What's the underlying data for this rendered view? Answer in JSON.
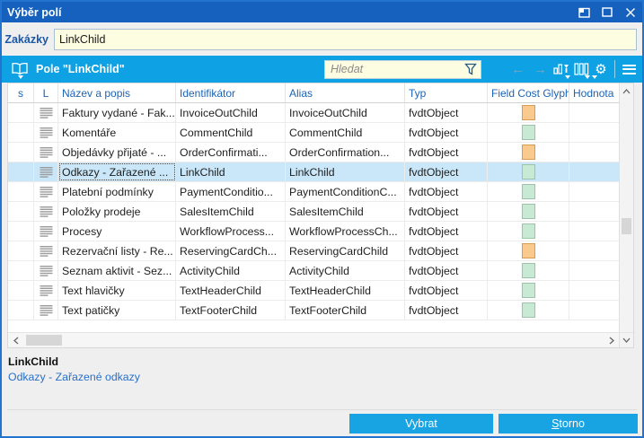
{
  "window": {
    "title": "Výběr polí"
  },
  "filter": {
    "label": "Zakázky",
    "value": "LinkChild"
  },
  "toolbar": {
    "title": "Pole \"LinkChild\"",
    "search_placeholder": "Hledat"
  },
  "table": {
    "columns": [
      "s",
      "L",
      "Název a popis",
      "Identifikátor",
      "Alias",
      "Typ",
      "Field Cost Glyph",
      "Hodnota"
    ],
    "selected_index": 3,
    "rows": [
      {
        "name": "Faktury vydané - Fak...",
        "id": "InvoiceOutChild",
        "alias": "InvoiceOutChild",
        "type": "fvdtObject",
        "glyph": "orange",
        "value": ""
      },
      {
        "name": "Komentáře",
        "id": "CommentChild",
        "alias": "CommentChild",
        "type": "fvdtObject",
        "glyph": "green",
        "value": ""
      },
      {
        "name": "Objedávky přijaté - ...",
        "id": "OrderConfirmati...",
        "alias": "OrderConfirmation...",
        "type": "fvdtObject",
        "glyph": "orange",
        "value": ""
      },
      {
        "name": "Odkazy - Zařazené ...",
        "id": "LinkChild",
        "alias": "LinkChild",
        "type": "fvdtObject",
        "glyph": "green",
        "value": ""
      },
      {
        "name": "Platební podmínky",
        "id": "PaymentConditio...",
        "alias": "PaymentConditionC...",
        "type": "fvdtObject",
        "glyph": "green",
        "value": ""
      },
      {
        "name": "Položky prodeje",
        "id": "SalesItemChild",
        "alias": "SalesItemChild",
        "type": "fvdtObject",
        "glyph": "green",
        "value": ""
      },
      {
        "name": "Procesy",
        "id": "WorkflowProcess...",
        "alias": "WorkflowProcessCh...",
        "type": "fvdtObject",
        "glyph": "green",
        "value": ""
      },
      {
        "name": "Rezervační listy - Re...",
        "id": "ReservingCardCh...",
        "alias": "ReservingCardChild",
        "type": "fvdtObject",
        "glyph": "orange",
        "value": ""
      },
      {
        "name": "Seznam aktivit - Sez...",
        "id": "ActivityChild",
        "alias": "ActivityChild",
        "type": "fvdtObject",
        "glyph": "green",
        "value": ""
      },
      {
        "name": "Text hlavičky",
        "id": "TextHeaderChild",
        "alias": "TextHeaderChild",
        "type": "fvdtObject",
        "glyph": "green",
        "value": ""
      },
      {
        "name": "Text patičky",
        "id": "TextFooterChild",
        "alias": "TextFooterChild",
        "type": "fvdtObject",
        "glyph": "green",
        "value": ""
      }
    ]
  },
  "status": {
    "field": "LinkChild",
    "description": "Odkazy - Zařazené odkazy"
  },
  "buttons": {
    "select": "Vybrat",
    "cancel_prefix": "S",
    "cancel_rest": "torno"
  },
  "icons": {
    "gear": "⚙",
    "nav_left": "←",
    "nav_right": "→"
  },
  "colors": {
    "titlebar": "#1660BE",
    "toolbar": "#0EA2E4",
    "button": "#18A3E3",
    "selection": "#C9E7F8",
    "glyph_orange": "#FAC98E",
    "glyph_orange_border": "#D99B52",
    "glyph_green": "#C8E9D4",
    "glyph_green_border": "#9CC4AA",
    "input_bg": "#FDFDE2"
  }
}
